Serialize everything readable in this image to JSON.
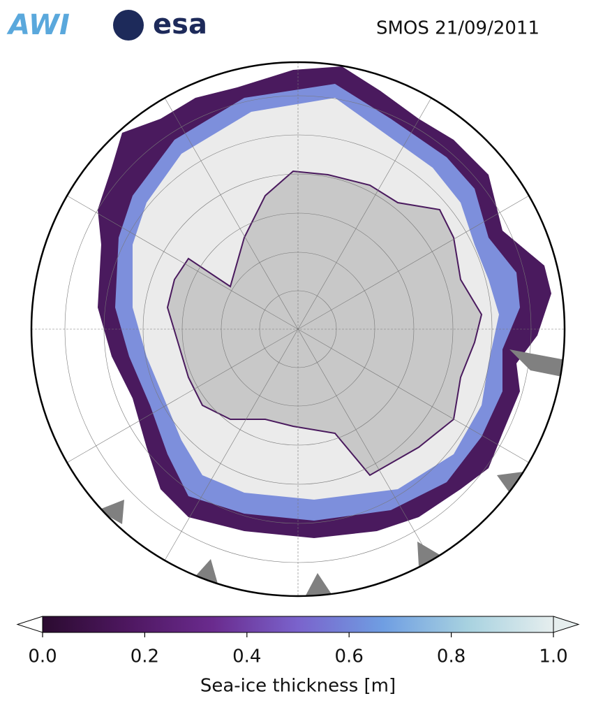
{
  "logos": {
    "awi": "AWI",
    "esa": "esa"
  },
  "title": "SMOS 21/09/2011",
  "colorbar": {
    "label": "Sea-ice thickness [m]",
    "lim": [
      0,
      1
    ],
    "ticks": [
      {
        "value": 0,
        "label": "0.0"
      },
      {
        "value": 0.2,
        "label": "0.2"
      },
      {
        "value": 0.4,
        "label": "0.4"
      },
      {
        "value": 0.6,
        "label": "0.6"
      },
      {
        "value": 0.8,
        "label": "0.8"
      },
      {
        "value": 1,
        "label": "1.0"
      }
    ],
    "colors": [
      "#2b0b30",
      "#4e1760",
      "#6a2b8e",
      "#7a63cc",
      "#6f9ee2",
      "#a8d2e0",
      "#e6eeee"
    ]
  }
}
